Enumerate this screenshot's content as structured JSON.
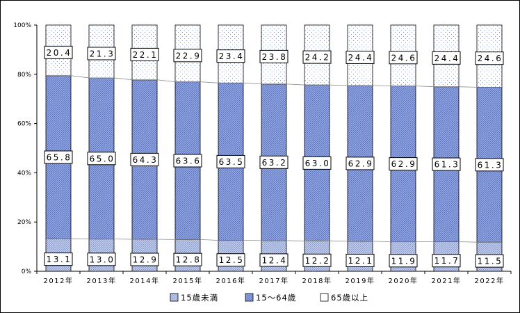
{
  "chart_data": {
    "type": "bar",
    "stacked": true,
    "percent": true,
    "categories": [
      "2012年",
      "2013年",
      "2014年",
      "2015年",
      "2016年",
      "2017年",
      "2018年",
      "2019年",
      "2020年",
      "2021年",
      "2022年"
    ],
    "series": [
      {
        "name": "15歳未満",
        "values": [
          13.1,
          13.0,
          12.9,
          12.8,
          12.5,
          12.4,
          12.2,
          12.1,
          11.9,
          11.7,
          11.5
        ],
        "color": "#a9b9de",
        "pattern": "diagonal"
      },
      {
        "name": "15～64歳",
        "values": [
          65.8,
          65.0,
          64.3,
          63.6,
          63.5,
          63.2,
          63.0,
          62.9,
          62.9,
          61.3,
          61.3
        ],
        "color": "#7c93d8",
        "pattern": "diagonal"
      },
      {
        "name": "65歳以上",
        "values": [
          20.4,
          21.3,
          22.1,
          22.9,
          23.4,
          23.8,
          24.2,
          24.4,
          24.6,
          24.4,
          24.6
        ],
        "color": "#ffffff",
        "pattern": "dots"
      }
    ],
    "ylim": [
      0,
      100
    ],
    "yticks": [
      "0%",
      "20%",
      "40%",
      "60%",
      "80%",
      "100%"
    ],
    "grid": false,
    "legend": {
      "position": "bottom",
      "labels": [
        "15歳未満",
        "15～64歳",
        "65歳以上"
      ]
    },
    "series_lines": true
  }
}
